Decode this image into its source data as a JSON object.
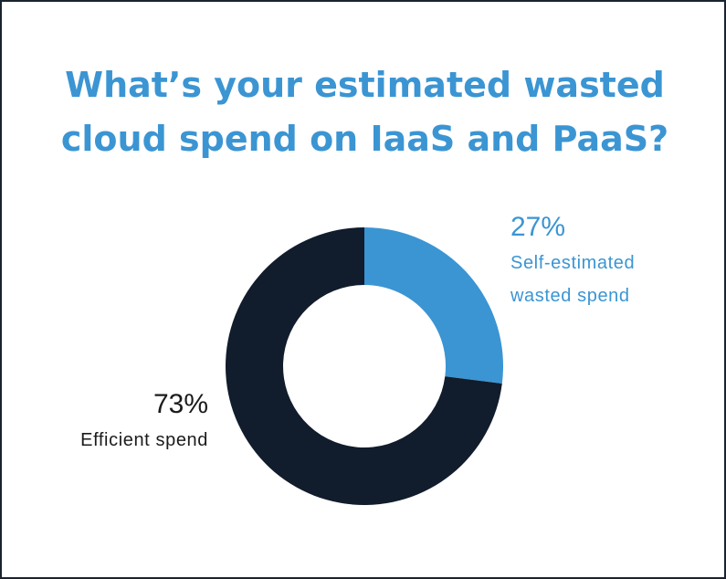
{
  "colors": {
    "wasted": "#3b95d3",
    "efficient": "#111c2c",
    "title": "#3b95d3",
    "efficient_text": "#1b1b1b"
  },
  "chart_data": {
    "type": "pie",
    "title": "What’s your estimated wasted cloud spend on IaaS and PaaS?",
    "title_lines": [
      "What’s your estimated wasted",
      "cloud spend on IaaS and PaaS?"
    ],
    "hole": true,
    "slices": [
      {
        "value": 27,
        "value_label": "27%",
        "label_lines": [
          "Self-estimated",
          "wasted spend"
        ],
        "color": "#3b95d3"
      },
      {
        "value": 73,
        "value_label": "73%",
        "label_lines": [
          "Efficient spend"
        ],
        "color": "#111c2c"
      }
    ]
  }
}
